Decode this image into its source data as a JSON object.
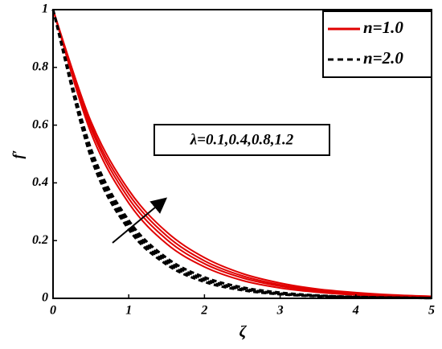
{
  "chart_data": {
    "type": "line",
    "xlabel": "ζ",
    "ylabel": "f′",
    "annotation": "λ=0.1,0.4,0.8,1.2",
    "x": [
      0,
      0.5,
      1,
      1.5,
      2,
      2.5,
      3,
      3.5,
      4,
      4.5,
      5
    ],
    "xlim": [
      0,
      5
    ],
    "xticks": [
      0,
      1,
      2,
      3,
      4,
      5
    ],
    "ylim": [
      0,
      1
    ],
    "yticks": [
      0,
      0.2,
      0.4,
      0.6,
      0.8,
      1
    ],
    "legend": "upper right",
    "series": [
      {
        "name": "n=1.0",
        "color": "#e00000",
        "dash": false,
        "curves": [
          [
            1,
            0.574,
            0.33,
            0.189,
            0.109,
            0.062,
            0.036,
            0.021,
            0.012,
            0.007,
            0.004
          ],
          [
            1,
            0.589,
            0.346,
            0.204,
            0.12,
            0.071,
            0.042,
            0.024,
            0.014,
            0.008,
            0.005
          ],
          [
            1,
            0.6,
            0.361,
            0.217,
            0.13,
            0.078,
            0.047,
            0.028,
            0.017,
            0.01,
            0.006
          ],
          [
            1,
            0.613,
            0.375,
            0.23,
            0.141,
            0.086,
            0.053,
            0.032,
            0.02,
            0.012,
            0.007
          ]
        ]
      },
      {
        "name": "n=2.0",
        "color": "#000000",
        "dash": true,
        "curves": [
          [
            1,
            0.489,
            0.239,
            0.117,
            0.057,
            0.028,
            0.014,
            0.007,
            0.003,
            0.002,
            0.001
          ],
          [
            1,
            0.499,
            0.249,
            0.124,
            0.062,
            0.031,
            0.015,
            0.008,
            0.004,
            0.002,
            0.001
          ],
          [
            1,
            0.509,
            0.259,
            0.132,
            0.067,
            0.034,
            0.017,
            0.009,
            0.005,
            0.002,
            0.001
          ],
          [
            1,
            0.519,
            0.27,
            0.14,
            0.073,
            0.038,
            0.02,
            0.01,
            0.005,
            0.003,
            0.001
          ]
        ]
      }
    ]
  }
}
